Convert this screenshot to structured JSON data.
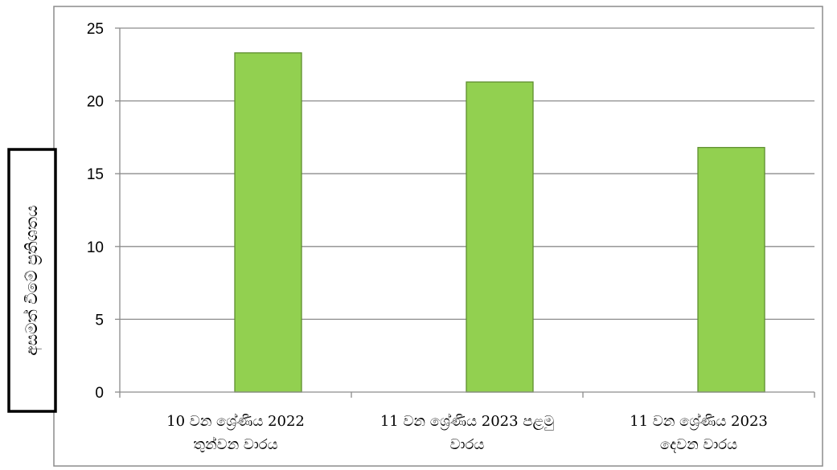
{
  "chart_data": {
    "type": "bar",
    "categories": [
      [
        "10 වන ශ්‍රේණිය 2022",
        "තුන්වන වාරය"
      ],
      [
        "11 වන ශ්‍රේණිය 2023 පළමු",
        "වාරය"
      ],
      [
        "11 වන ශ්‍රේණිය 2023",
        "දෙවන වාරය"
      ]
    ],
    "values": [
      23.3,
      21.3,
      16.8
    ],
    "yticks": [
      "0",
      "5",
      "10",
      "15",
      "20",
      "25"
    ],
    "ylim": [
      0,
      25
    ],
    "ylabel": "අසමත් වීමේ ප්‍රතිශතය",
    "xlabel": "",
    "title": "",
    "grid": true,
    "bar_color": "#92D050",
    "bar_edge_color": "#5E8E2E"
  }
}
